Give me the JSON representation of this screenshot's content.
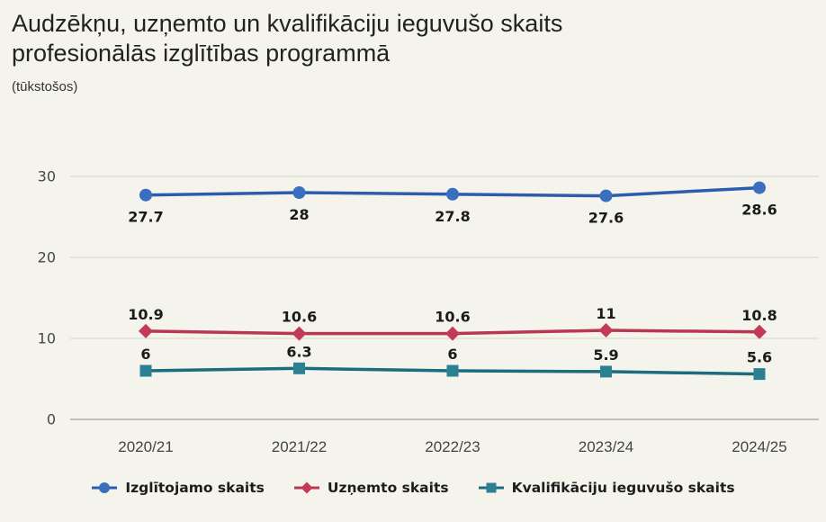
{
  "title": {
    "line1": "Audzēkņu, uzņemto un kvalifikāciju ieguvušo skaits",
    "line2": "profesionālās izglītības programmā"
  },
  "subtitle": "(tūkstošos)",
  "chart_data": {
    "type": "line",
    "categories": [
      "2020/21",
      "2021/22",
      "2022/23",
      "2023/24",
      "2024/25"
    ],
    "series": [
      {
        "name": "Izglītojamo skaits",
        "values": [
          27.7,
          28,
          27.8,
          27.6,
          28.6
        ],
        "marker": "circle",
        "marker_color": "#3a6fc0",
        "line_color": "#2c5cb0",
        "label_position": "below"
      },
      {
        "name": "Uzņemto skaits",
        "values": [
          10.9,
          10.6,
          10.6,
          11,
          10.8
        ],
        "marker": "diamond",
        "marker_color": "#c33a56",
        "line_color": "#b93750",
        "label_position": "above"
      },
      {
        "name": "Kvalifikāciju ieguvušo skaits",
        "values": [
          6,
          6.3,
          6,
          5.9,
          5.6
        ],
        "marker": "square",
        "marker_color": "#2b8191",
        "line_color": "#1d6b7e",
        "label_position": "above"
      }
    ],
    "yticks": [
      0,
      10,
      20,
      30
    ],
    "ylim": [
      0,
      30
    ],
    "grid": true,
    "legend_position": "bottom",
    "colors": {
      "background": "#f5f4ec",
      "gridline": "#dcdcd4",
      "axis_line": "#adada5",
      "data_label": "#1b1b1b"
    }
  }
}
